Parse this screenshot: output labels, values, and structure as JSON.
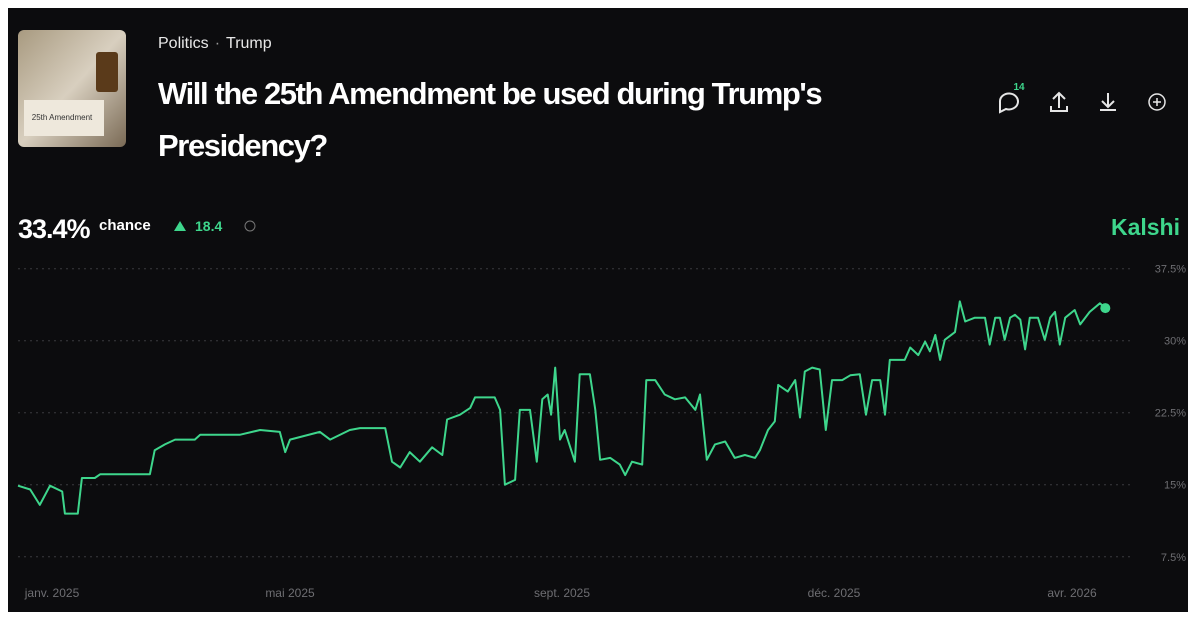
{
  "header": {
    "breadcrumb": [
      "Politics",
      "Trump"
    ],
    "title": "Will the 25th Amendment be used during Trump's Presidency?",
    "thumbnail_text": "25th Amendment",
    "comment_count": "14"
  },
  "summary": {
    "value": "33.4%",
    "label": "chance",
    "change": "18.4",
    "brand": "Kalshi"
  },
  "chart_data": {
    "type": "line",
    "color": "#3ed68c",
    "grid": true,
    "x": [
      0,
      0.18,
      0.32,
      0.47,
      0.65,
      0.69,
      0.88,
      0.94,
      1.13,
      1.21,
      1.94,
      2.01,
      2.16,
      2.31,
      2.6,
      2.68,
      3.26,
      3.56,
      3.85,
      3.93,
      4,
      4.44,
      4.59,
      4.88,
      5.03,
      5.4,
      5.5,
      5.62,
      5.76,
      5.91,
      6.09,
      6.24,
      6.31,
      6.5,
      6.65,
      6.72,
      7.01,
      7.09,
      7.16,
      7.31,
      7.38,
      7.53,
      7.63,
      7.71,
      7.79,
      7.84,
      7.9,
      7.97,
      8.04,
      8.19,
      8.26,
      8.41,
      8.49,
      8.56,
      8.71,
      8.85,
      8.93,
      9.03,
      9.18,
      9.24,
      9.37,
      9.51,
      9.66,
      9.81,
      9.96,
      10.03,
      10.13,
      10.25,
      10.4,
      10.54,
      10.69,
      10.84,
      10.91,
      11.03,
      11.13,
      11.18,
      11.32,
      11.43,
      11.5,
      11.57,
      11.68,
      11.79,
      11.88,
      11.97,
      12.12,
      12.24,
      12.38,
      12.47,
      12.56,
      12.68,
      12.75,
      12.82,
      13.04,
      13.12,
      13.24,
      13.34,
      13.41,
      13.49,
      13.56,
      13.63,
      13.78,
      13.85,
      13.93,
      14.07,
      14.22,
      14.29,
      14.37,
      14.44,
      14.51,
      14.59,
      14.66,
      14.74,
      14.81,
      14.88,
      15,
      15.1,
      15.18,
      15.25,
      15.32,
      15.4,
      15.54,
      15.62,
      15.76,
      15.91,
      15.99
    ],
    "values": [
      14.9,
      14.5,
      12.9,
      14.9,
      14.3,
      12,
      12,
      15.7,
      15.7,
      16.1,
      16.1,
      18.6,
      19.2,
      19.7,
      19.7,
      20.2,
      20.2,
      20.7,
      20.5,
      18.4,
      19.7,
      20.5,
      19.7,
      20.7,
      20.9,
      20.9,
      17.4,
      16.8,
      18.4,
      17.4,
      18.9,
      18.1,
      21.8,
      22.3,
      23,
      24.1,
      24.1,
      22.8,
      15,
      15.5,
      22.8,
      22.8,
      17.4,
      23.9,
      24.4,
      22.3,
      27.2,
      19.7,
      20.7,
      17.4,
      26.5,
      26.5,
      22.8,
      17.6,
      17.8,
      17.1,
      16,
      17.4,
      17.1,
      25.9,
      25.9,
      24.4,
      23.9,
      24.1,
      22.8,
      24.4,
      17.6,
      19.2,
      19.5,
      17.8,
      18.1,
      17.8,
      18.6,
      20.7,
      21.6,
      25.4,
      24.7,
      25.9,
      22,
      26.8,
      27.2,
      27,
      20.7,
      25.9,
      25.9,
      26.4,
      26.5,
      22.3,
      25.9,
      25.9,
      22.3,
      28,
      28,
      29.3,
      28.5,
      29.9,
      28.9,
      30.6,
      28,
      30.1,
      30.9,
      34.1,
      32,
      32.4,
      32.4,
      29.6,
      32.4,
      32.4,
      30.1,
      32.4,
      32.7,
      32.2,
      29.1,
      32.4,
      32.4,
      30.1,
      32.4,
      33,
      29.6,
      32.4,
      33.2,
      31.7,
      33,
      33.9,
      33.4
    ],
    "xlim": [
      0,
      16.5
    ],
    "xticks": [
      {
        "value": 0.5,
        "label": "janv. 2025"
      },
      {
        "value": 4,
        "label": "mai 2025"
      },
      {
        "value": 8,
        "label": "sept. 2025"
      },
      {
        "value": 12,
        "label": "déc. 2025"
      },
      {
        "value": 15.5,
        "label": "avr. 2026"
      }
    ],
    "ylim": [
      5.6,
      38.2
    ],
    "yticks": [
      {
        "value": 7.5,
        "label": "7.5%"
      },
      {
        "value": 15,
        "label": "15%"
      },
      {
        "value": 22.5,
        "label": "22.5%"
      },
      {
        "value": 30,
        "label": "30%"
      },
      {
        "value": 37.5,
        "label": "37.5%"
      }
    ]
  }
}
